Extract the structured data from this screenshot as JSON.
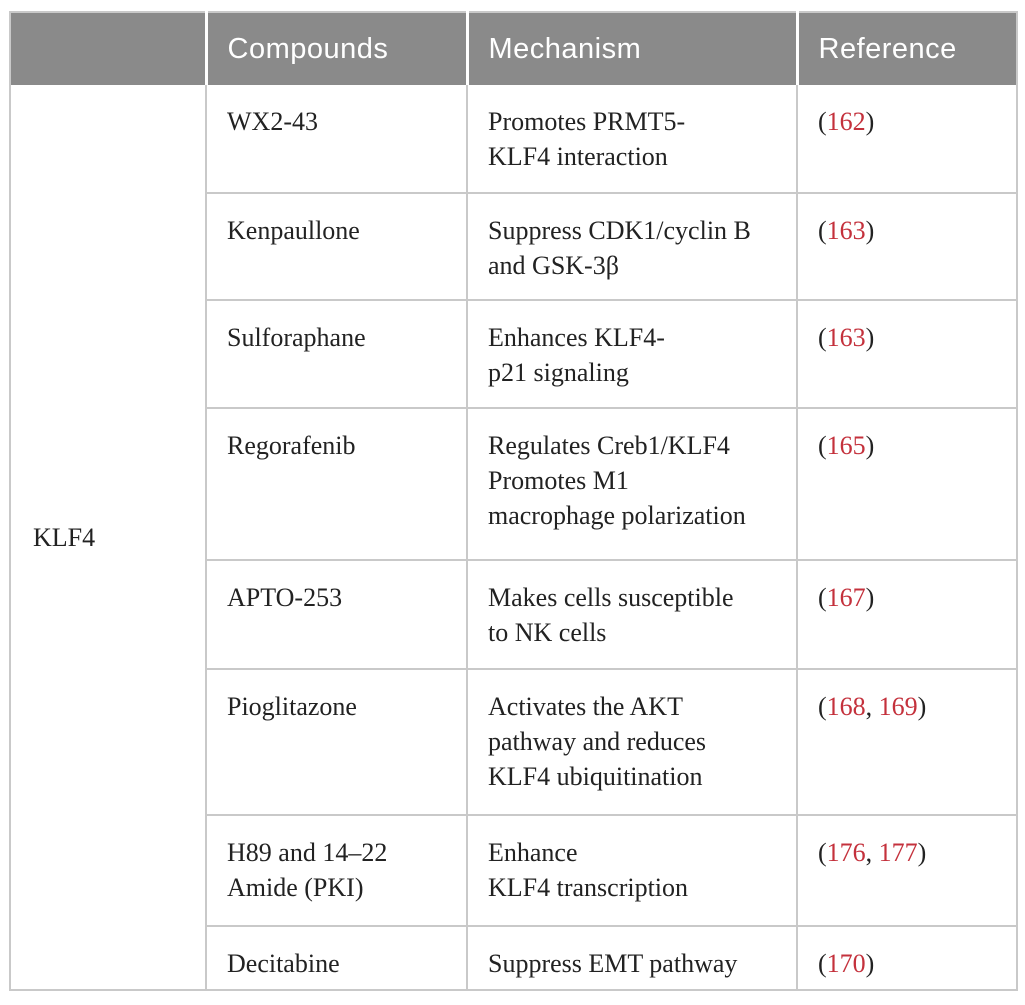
{
  "table": {
    "headers": [
      {
        "label": ""
      },
      {
        "label": "Compounds"
      },
      {
        "label": "Mechanism"
      },
      {
        "label": "Reference"
      }
    ],
    "group_label": "KLF4",
    "rows": [
      {
        "compound": "WX2-43",
        "mechanism": "Promotes PRMT5-\nKLF4 interaction",
        "references": [
          "162"
        ]
      },
      {
        "compound": "Kenpaullone",
        "mechanism": "Suppress CDK1/cyclin B\nand GSK-3β",
        "references": [
          "163"
        ]
      },
      {
        "compound": "Sulforaphane",
        "mechanism": "Enhances KLF4-\np21 signaling",
        "references": [
          "163"
        ]
      },
      {
        "compound": "Regorafenib",
        "mechanism": "Regulates Creb1/KLF4\nPromotes M1\nmacrophage polarization",
        "references": [
          "165"
        ]
      },
      {
        "compound": "APTO-253",
        "mechanism": "Makes cells susceptible\nto NK cells",
        "references": [
          "167"
        ]
      },
      {
        "compound": "Pioglitazone",
        "mechanism": "Activates the AKT\npathway and reduces\nKLF4 ubiquitination",
        "references": [
          "168",
          "169"
        ]
      },
      {
        "compound": "H89 and 14–22\nAmide (PKI)",
        "mechanism": "Enhance\nKLF4 transcription",
        "references": [
          "176",
          "177"
        ]
      },
      {
        "compound": "Decitabine",
        "mechanism": "Suppress EMT pathway",
        "references": [
          "170"
        ]
      }
    ],
    "colors": {
      "header_bg": "#8a8a8a",
      "header_text": "#ffffff",
      "body_text": "#222222",
      "reference_number": "#c4313c",
      "border": "#c9c9c9"
    }
  }
}
